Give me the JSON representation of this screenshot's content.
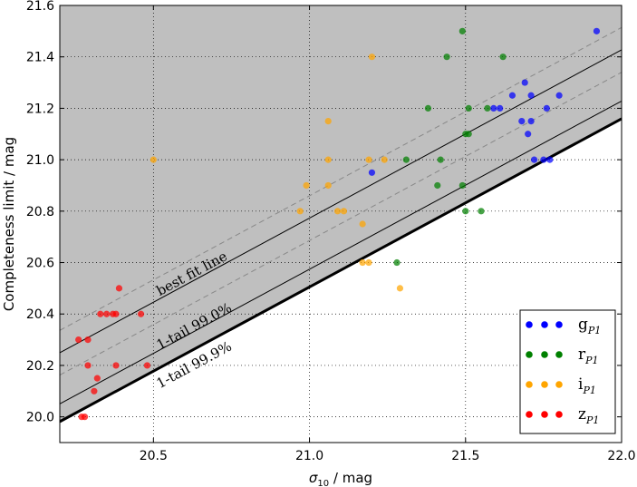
{
  "chart_data": {
    "type": "scatter",
    "title": "",
    "xlabel": "σ10 / mag",
    "xlabel_main": "σ",
    "xlabel_sub": "10",
    "xlabel_tail": " / mag",
    "ylabel": "Completeness limit / mag",
    "xlim": [
      20.2,
      22.0
    ],
    "ylim": [
      19.9,
      21.6
    ],
    "x_ticks": [
      20.5,
      21.0,
      21.5,
      22.0
    ],
    "x_tick_labels": [
      "20.5",
      "21.0",
      "21.5",
      "22.0"
    ],
    "y_ticks": [
      20.0,
      20.2,
      20.4,
      20.6,
      20.8,
      21.0,
      21.2,
      21.4,
      21.6
    ],
    "y_tick_labels": [
      "20.0",
      "20.2",
      "20.4",
      "20.6",
      "20.8",
      "21.0",
      "21.2",
      "21.4",
      "21.6"
    ],
    "grid": true,
    "legend_position": "bottom-right",
    "shaded_region": {
      "color": "#bfbfbf",
      "description": "region above the 1-tail 99.9% line"
    },
    "lines": [
      {
        "name": "best fit line",
        "slope": 0.6543,
        "intercept": 7.0326,
        "style": "solid",
        "color": "#000000"
      },
      {
        "name": "upper dashed",
        "slope": 0.6543,
        "intercept": 7.1196,
        "style": "dashed",
        "color": "#888888"
      },
      {
        "name": "lower dashed",
        "slope": 0.6543,
        "intercept": 6.9456,
        "style": "dashed",
        "color": "#888888"
      },
      {
        "name": "1-tail 99.0%",
        "slope": 0.6543,
        "intercept": 6.8337,
        "style": "solid",
        "color": "#000000"
      },
      {
        "name": "1-tail 99.9%",
        "slope": 0.6543,
        "intercept": 6.7647,
        "style": "solid-thick",
        "color": "#000000"
      }
    ],
    "annotations": [
      {
        "text": "best fit line",
        "x": 20.52,
        "y": 20.47
      },
      {
        "text": "1-tail 99.0%",
        "x": 20.52,
        "y": 20.26
      },
      {
        "text": "1-tail 99.9%",
        "x": 20.52,
        "y": 20.11
      }
    ],
    "series": [
      {
        "name": "g",
        "sub": "P1",
        "color": "#0000ff",
        "points": [
          [
            21.2,
            20.95
          ],
          [
            21.59,
            21.2
          ],
          [
            21.61,
            21.2
          ],
          [
            21.65,
            21.25
          ],
          [
            21.68,
            21.15
          ],
          [
            21.69,
            21.3
          ],
          [
            21.7,
            21.1
          ],
          [
            21.71,
            21.25
          ],
          [
            21.71,
            21.15
          ],
          [
            21.72,
            21.0
          ],
          [
            21.75,
            21.0
          ],
          [
            21.76,
            21.2
          ],
          [
            21.77,
            21.0
          ],
          [
            21.8,
            21.25
          ],
          [
            21.92,
            21.5
          ]
        ]
      },
      {
        "name": "r",
        "sub": "P1",
        "color": "#008000",
        "points": [
          [
            21.28,
            20.6
          ],
          [
            21.31,
            21.0
          ],
          [
            21.38,
            21.2
          ],
          [
            21.41,
            20.9
          ],
          [
            21.42,
            21.0
          ],
          [
            21.44,
            21.4
          ],
          [
            21.49,
            21.5
          ],
          [
            21.49,
            20.9
          ],
          [
            21.5,
            21.1
          ],
          [
            21.51,
            21.1
          ],
          [
            21.51,
            21.2
          ],
          [
            21.5,
            20.8
          ],
          [
            21.55,
            20.8
          ],
          [
            21.57,
            21.2
          ],
          [
            21.62,
            21.4
          ]
        ]
      },
      {
        "name": "i",
        "sub": "P1",
        "color": "#ffa500",
        "points": [
          [
            20.5,
            21.0
          ],
          [
            20.97,
            20.8
          ],
          [
            20.99,
            20.9
          ],
          [
            21.06,
            21.15
          ],
          [
            21.06,
            21.0
          ],
          [
            21.06,
            20.9
          ],
          [
            21.09,
            20.8
          ],
          [
            21.11,
            20.8
          ],
          [
            21.17,
            20.75
          ],
          [
            21.17,
            20.6
          ],
          [
            21.19,
            20.6
          ],
          [
            21.19,
            21.0
          ],
          [
            21.2,
            21.4
          ],
          [
            21.24,
            21.0
          ],
          [
            21.29,
            20.5
          ]
        ]
      },
      {
        "name": "z",
        "sub": "P1",
        "color": "#ff0000",
        "points": [
          [
            20.26,
            20.3
          ],
          [
            20.27,
            20.0
          ],
          [
            20.28,
            20.0
          ],
          [
            20.29,
            20.3
          ],
          [
            20.29,
            20.2
          ],
          [
            20.31,
            20.1
          ],
          [
            20.32,
            20.15
          ],
          [
            20.33,
            20.4
          ],
          [
            20.35,
            20.4
          ],
          [
            20.37,
            20.4
          ],
          [
            20.38,
            20.4
          ],
          [
            20.38,
            20.2
          ],
          [
            20.39,
            20.5
          ],
          [
            20.46,
            20.4
          ],
          [
            20.48,
            20.2
          ]
        ]
      }
    ]
  }
}
